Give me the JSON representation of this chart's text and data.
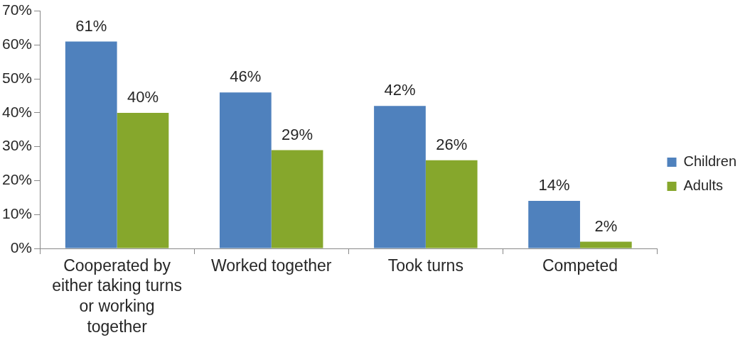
{
  "chart_data": {
    "type": "bar",
    "categories": [
      "Cooperated by either taking turns or working together",
      "Worked together",
      "Took turns",
      "Competed"
    ],
    "series": [
      {
        "name": "Children",
        "color": "#4f81bd",
        "values": [
          61,
          46,
          42,
          14
        ],
        "value_labels": [
          "61%",
          "46%",
          "42%",
          "14%"
        ]
      },
      {
        "name": "Adults",
        "color": "#86a72c",
        "values": [
          40,
          29,
          26,
          2
        ],
        "value_labels": [
          "40%",
          "29%",
          "26%",
          "2%"
        ]
      }
    ],
    "ylim": [
      0,
      70
    ],
    "yticks": [
      {
        "value": 0,
        "label": "0%"
      },
      {
        "value": 10,
        "label": "10%"
      },
      {
        "value": 20,
        "label": "20%"
      },
      {
        "value": 30,
        "label": "30%"
      },
      {
        "value": 40,
        "label": "40%"
      },
      {
        "value": 50,
        "label": "50%"
      },
      {
        "value": 60,
        "label": "60%"
      },
      {
        "value": 70,
        "label": "70%"
      }
    ],
    "legend": "right",
    "grid": false
  }
}
